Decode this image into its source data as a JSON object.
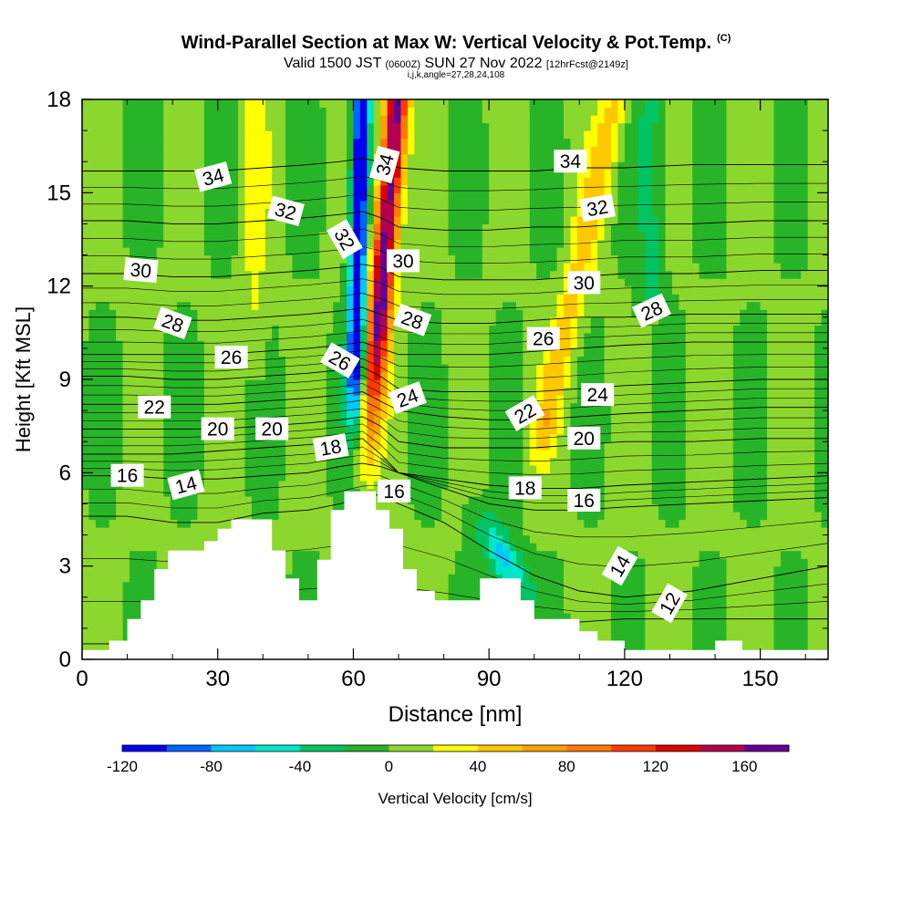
{
  "header": {
    "title": "Wind-Parallel Section at Max W: Vertical Velocity & Pot.Temp.",
    "copyright": "(C)",
    "valid_prefix": "Valid 1500 JST",
    "valid_utc": "(0600Z)",
    "valid_date": "SUN 27 Nov 2022",
    "forecast": "[12hrFcst@2149z]",
    "indices": "i,j,k,angle=27,28,24,108"
  },
  "chart_data": {
    "type": "heatmap",
    "title": "Wind-Parallel Section at Max W: Vertical Velocity & Pot.Temp.",
    "xlabel": "Distance [nm]",
    "ylabel": "Height [Kft MSL]",
    "xlim": [
      0,
      165
    ],
    "ylim": [
      0,
      18
    ],
    "x_ticks": [
      "0",
      "30",
      "60",
      "90",
      "120",
      "150"
    ],
    "y_ticks": [
      "0",
      "3",
      "6",
      "9",
      "12",
      "15",
      "18"
    ],
    "colorbar": {
      "label": "Vertical Velocity [cm/s]",
      "tick_labels": [
        "-120",
        "-80",
        "-40",
        "0",
        "40",
        "80",
        "120",
        "160"
      ],
      "bounds": [
        -120,
        -100,
        -80,
        -60,
        -40,
        -20,
        0,
        20,
        40,
        60,
        80,
        100,
        120,
        140,
        160,
        180
      ],
      "colors": [
        "#0000f0",
        "#0064ff",
        "#00c8ff",
        "#00e6c8",
        "#00c464",
        "#28b428",
        "#8cd72d",
        "#ffff00",
        "#ffc800",
        "#ffa000",
        "#ff7800",
        "#ff3c00",
        "#dc0000",
        "#b40050",
        "#640096"
      ]
    },
    "terrain_profile": [
      [
        0,
        0.3
      ],
      [
        6,
        0.3
      ],
      [
        6,
        0.6
      ],
      [
        10,
        0.6
      ],
      [
        10,
        1.3
      ],
      [
        13,
        1.3
      ],
      [
        13,
        1.9
      ],
      [
        16,
        1.9
      ],
      [
        16,
        2.9
      ],
      [
        19,
        2.9
      ],
      [
        19,
        3.5
      ],
      [
        27,
        3.5
      ],
      [
        27,
        3.8
      ],
      [
        30,
        3.8
      ],
      [
        30,
        4.2
      ],
      [
        33,
        4.2
      ],
      [
        33,
        4.5
      ],
      [
        42,
        4.5
      ],
      [
        42,
        3.5
      ],
      [
        45,
        3.5
      ],
      [
        45,
        2.6
      ],
      [
        48,
        2.6
      ],
      [
        48,
        1.9
      ],
      [
        52,
        1.9
      ],
      [
        52,
        3.2
      ],
      [
        55,
        3.2
      ],
      [
        55,
        4.8
      ],
      [
        58,
        4.8
      ],
      [
        58,
        5.4
      ],
      [
        65,
        5.4
      ],
      [
        65,
        4.8
      ],
      [
        68,
        4.8
      ],
      [
        68,
        4.2
      ],
      [
        71,
        4.2
      ],
      [
        71,
        2.9
      ],
      [
        74,
        2.9
      ],
      [
        74,
        2.2
      ],
      [
        78,
        2.2
      ],
      [
        78,
        1.9
      ],
      [
        88,
        1.9
      ],
      [
        88,
        2.6
      ],
      [
        97,
        2.6
      ],
      [
        97,
        1.9
      ],
      [
        100,
        1.9
      ],
      [
        100,
        1.3
      ],
      [
        110,
        1.3
      ],
      [
        110,
        0.9
      ],
      [
        114,
        0.9
      ],
      [
        114,
        0.6
      ],
      [
        120,
        0.6
      ],
      [
        120,
        0.3
      ],
      [
        140,
        0.3
      ],
      [
        140,
        0.6
      ],
      [
        146,
        0.6
      ],
      [
        146,
        0.3
      ],
      [
        165,
        0.3
      ]
    ],
    "w_field": [
      {
        "x": [
          0,
          3,
          10,
          20,
          40,
          52,
          56,
          58,
          60,
          61,
          62,
          63,
          65,
          67,
          69,
          71,
          73,
          76,
          80,
          84,
          88,
          92,
          96,
          100,
          105,
          110,
          115,
          120,
          125,
          130,
          135,
          140,
          150,
          165
        ]
      },
      {
        "band": "background",
        "value": 0
      },
      {
        "band": "updraft-core",
        "x_range": [
          62,
          70
        ],
        "y_range": [
          6,
          18
        ],
        "max": 160
      },
      {
        "band": "downdraft-core",
        "x_range": [
          56,
          62
        ],
        "y_range": [
          7,
          18
        ],
        "min": -120
      },
      {
        "band": "lee-downdraft",
        "x_range": [
          85,
          100
        ],
        "y_range": [
          2.5,
          5
        ],
        "min": -60
      },
      {
        "band": "upper-updraft",
        "x_range": [
          92,
          125
        ],
        "y_range": [
          6,
          18
        ],
        "max": 50
      }
    ],
    "theta_contours": [
      {
        "level": 12,
        "heights": [
          0.5,
          0.5,
          0.6,
          0.7,
          0.9,
          1.0,
          1.0,
          1.0,
          1.0,
          1.0,
          1.0,
          1.1,
          1.2,
          1.2,
          1.3,
          1.3,
          1.3,
          1.3
        ]
      },
      {
        "level": 14,
        "heights": [
          4.6,
          4.6,
          4.4,
          4.4,
          4.7,
          4.8,
          5.0,
          5.2,
          5.3,
          5.0,
          4.4,
          3.5,
          2.7,
          2.2,
          2.0,
          2.2,
          2.6,
          3.0
        ]
      },
      {
        "level": 16,
        "heights": [
          5.9,
          5.9,
          5.8,
          5.8,
          5.9,
          6.0,
          6.2,
          6.3,
          6.2,
          6.0,
          5.5,
          5.0,
          4.8,
          4.8,
          4.9,
          5.0,
          5.1,
          5.2
        ]
      },
      {
        "level": 18,
        "heights": [
          6.6,
          6.6,
          6.6,
          6.7,
          6.8,
          6.9,
          7.0,
          7.1,
          6.6,
          6.0,
          5.8,
          5.6,
          5.5,
          5.5,
          5.6,
          5.7,
          5.8,
          5.9
        ]
      },
      {
        "level": 20,
        "heights": [
          7.4,
          7.4,
          7.4,
          7.4,
          7.5,
          7.6,
          7.7,
          7.8,
          7.5,
          7.0,
          6.8,
          6.8,
          6.8,
          6.9,
          7.0,
          7.0,
          7.1,
          7.1
        ]
      },
      {
        "level": 22,
        "heights": [
          8.2,
          8.2,
          8.2,
          8.2,
          8.3,
          8.4,
          8.5,
          8.6,
          8.3,
          8.0,
          7.8,
          7.7,
          7.7,
          7.8,
          7.9,
          8.0,
          8.1,
          8.1
        ]
      },
      {
        "level": 24,
        "heights": [
          9.1,
          9.1,
          9.0,
          9.0,
          9.1,
          9.2,
          9.3,
          9.4,
          9.1,
          8.7,
          8.6,
          8.6,
          8.6,
          8.7,
          8.8,
          8.9,
          9.0,
          9.0
        ]
      },
      {
        "level": 26,
        "heights": [
          9.8,
          9.8,
          9.8,
          9.8,
          9.9,
          10.0,
          10.1,
          10.2,
          10.0,
          9.8,
          9.8,
          9.8,
          9.9,
          10.0,
          10.1,
          10.2,
          10.2,
          10.2
        ]
      },
      {
        "level": 28,
        "heights": [
          11.0,
          11.0,
          10.9,
          10.9,
          11.0,
          11.1,
          11.2,
          11.3,
          11.1,
          10.9,
          10.8,
          10.8,
          10.9,
          11.0,
          11.0,
          11.1,
          11.1,
          11.1
        ]
      },
      {
        "level": 30,
        "heights": [
          12.4,
          12.4,
          12.3,
          12.3,
          12.4,
          12.5,
          12.6,
          12.7,
          12.6,
          12.3,
          12.2,
          12.2,
          12.2,
          12.3,
          12.4,
          12.4,
          12.5,
          12.5
        ]
      },
      {
        "level": 32,
        "heights": [
          14.1,
          14.1,
          14.0,
          14.0,
          14.1,
          14.2,
          14.3,
          14.4,
          14.2,
          13.9,
          13.8,
          13.8,
          13.9,
          13.9,
          14.0,
          14.0,
          14.1,
          14.1
        ]
      },
      {
        "level": 34,
        "heights": [
          15.7,
          15.7,
          15.7,
          15.7,
          15.8,
          15.9,
          16.0,
          16.1,
          16.0,
          15.8,
          15.7,
          15.7,
          15.7,
          15.8,
          15.8,
          15.9,
          15.9,
          15.9
        ]
      }
    ],
    "theta_x": [
      0,
      10,
      20,
      30,
      40,
      50,
      57,
      62,
      66,
      70,
      80,
      90,
      100,
      110,
      120,
      135,
      150,
      165
    ],
    "contour_labels": [
      {
        "text": "34",
        "x": 29,
        "y": 15.5,
        "rot": -15
      },
      {
        "text": "32",
        "x": 45,
        "y": 14.4,
        "rot": 15
      },
      {
        "text": "30",
        "x": 13,
        "y": 12.5,
        "rot": 5
      },
      {
        "text": "28",
        "x": 20,
        "y": 10.8,
        "rot": 20
      },
      {
        "text": "26",
        "x": 33,
        "y": 9.7,
        "rot": 0
      },
      {
        "text": "22",
        "x": 16,
        "y": 8.1,
        "rot": 0
      },
      {
        "text": "20",
        "x": 30,
        "y": 7.4,
        "rot": 0
      },
      {
        "text": "20",
        "x": 42,
        "y": 7.4,
        "rot": 0
      },
      {
        "text": "16",
        "x": 10,
        "y": 5.9,
        "rot": 0
      },
      {
        "text": "14",
        "x": 23,
        "y": 5.6,
        "rot": -15
      },
      {
        "text": "18",
        "x": 55,
        "y": 6.8,
        "rot": -10
      },
      {
        "text": "26",
        "x": 57,
        "y": 9.6,
        "rot": 30
      },
      {
        "text": "32",
        "x": 58,
        "y": 13.5,
        "rot": 60
      },
      {
        "text": "34",
        "x": 67,
        "y": 15.9,
        "rot": -75
      },
      {
        "text": "30",
        "x": 71,
        "y": 12.8,
        "rot": 0
      },
      {
        "text": "28",
        "x": 73,
        "y": 10.9,
        "rot": 20
      },
      {
        "text": "24",
        "x": 72,
        "y": 8.4,
        "rot": -20
      },
      {
        "text": "16",
        "x": 69,
        "y": 5.4,
        "rot": 0
      },
      {
        "text": "34",
        "x": 108,
        "y": 16.0,
        "rot": 0
      },
      {
        "text": "32",
        "x": 114,
        "y": 14.5,
        "rot": -10
      },
      {
        "text": "30",
        "x": 111,
        "y": 12.1,
        "rot": 0
      },
      {
        "text": "26",
        "x": 102,
        "y": 10.3,
        "rot": 0
      },
      {
        "text": "24",
        "x": 114,
        "y": 8.5,
        "rot": 0
      },
      {
        "text": "22",
        "x": 98,
        "y": 7.9,
        "rot": -30
      },
      {
        "text": "20",
        "x": 111,
        "y": 7.1,
        "rot": 0
      },
      {
        "text": "18",
        "x": 98,
        "y": 5.5,
        "rot": 0
      },
      {
        "text": "16",
        "x": 111,
        "y": 5.1,
        "rot": 0
      },
      {
        "text": "14",
        "x": 119,
        "y": 3.0,
        "rot": -60
      },
      {
        "text": "28",
        "x": 126,
        "y": 11.2,
        "rot": -25
      },
      {
        "text": "12",
        "x": 130,
        "y": 1.8,
        "rot": -60
      }
    ]
  }
}
